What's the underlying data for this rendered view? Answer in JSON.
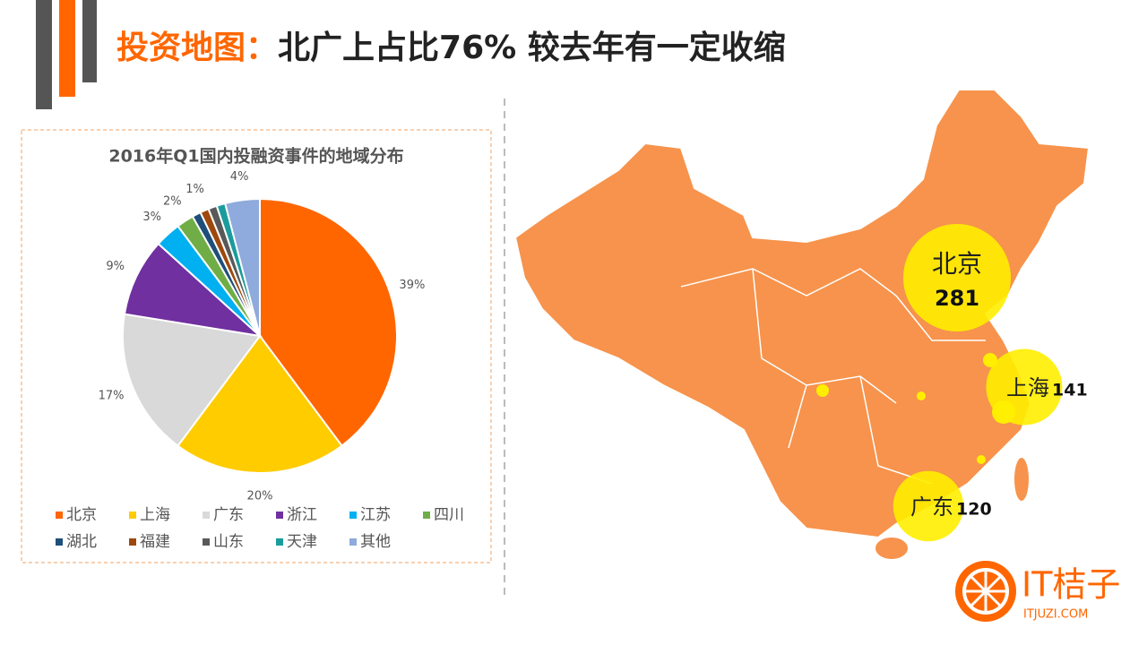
{
  "title": {
    "highlight": "投资地图：",
    "text": "北广上占比76%  较去年有一定收缩"
  },
  "chart_data": {
    "type": "pie",
    "title": "2016年Q1国内投融资事件的地域分布",
    "categories": [
      "北京",
      "上海",
      "广东",
      "浙江",
      "江苏",
      "四川",
      "湖北",
      "福建",
      "山东",
      "天津",
      "其他"
    ],
    "values": [
      39,
      20,
      17,
      9,
      3,
      2,
      1,
      1,
      1,
      1,
      4
    ],
    "value_labels": [
      "39%",
      "20%",
      "17%",
      "9%",
      "3%",
      "2%",
      null,
      "1%",
      null,
      null,
      "4%"
    ],
    "colors": [
      "#ff6600",
      "#ffcc00",
      "#d9d9d9",
      "#7030a0",
      "#00b0f0",
      "#70ad47",
      "#1f4e79",
      "#9e480e",
      "#595959",
      "#1b9c9c",
      "#8faadc"
    ]
  },
  "map": {
    "bubbles": [
      {
        "name": "北京",
        "value": 281
      },
      {
        "name": "上海",
        "value": 141
      },
      {
        "name": "广东",
        "value": 120
      }
    ]
  },
  "logo": {
    "name": "IT桔子",
    "url": "ITJUZI.COM"
  }
}
